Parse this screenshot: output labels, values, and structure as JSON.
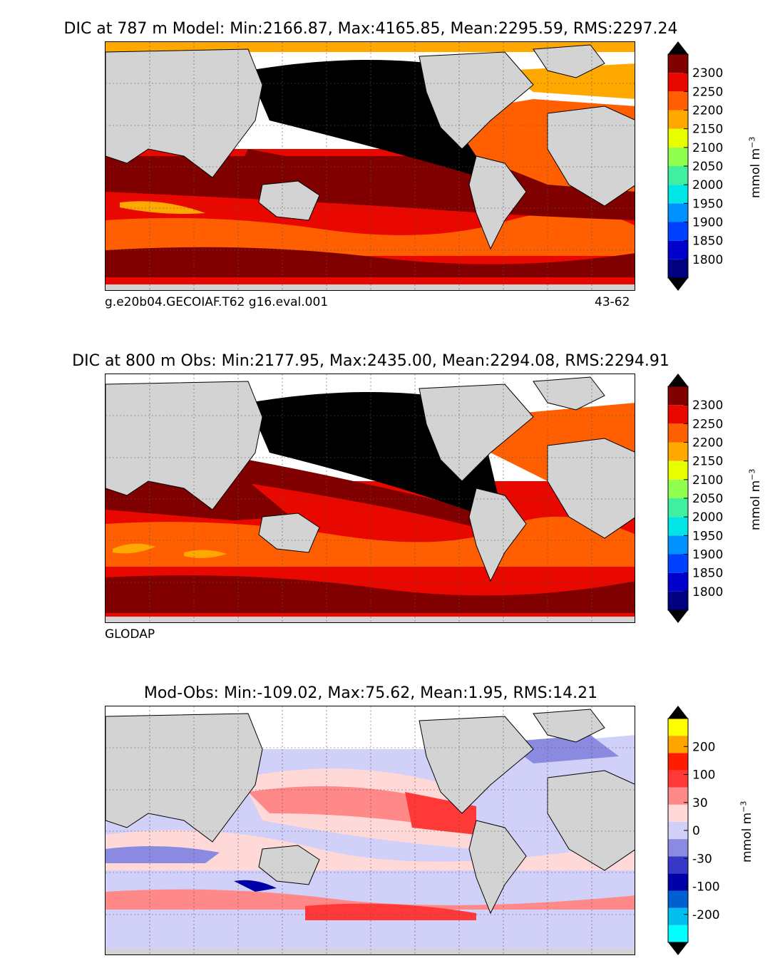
{
  "panels": [
    {
      "title": "DIC at 787 m Model: Min:2166.87, Max:4165.85, Mean:2295.59, RMS:2297.24",
      "caption_left": "g.e20b04.GECOIAF.T62 g16.eval.001",
      "caption_right": "43-62",
      "unit": "mmol m",
      "unit_exp": "−3",
      "colorbar": {
        "colors": [
          "#000080",
          "#0000cd",
          "#0040ff",
          "#0090ff",
          "#00e5e5",
          "#40f0a0",
          "#90ff50",
          "#e8ff00",
          "#ffa800",
          "#ff5f00",
          "#e80800",
          "#800000"
        ],
        "ticks": [
          "1800",
          "1850",
          "1900",
          "1950",
          "2000",
          "2050",
          "2100",
          "2150",
          "2200",
          "2250",
          "2300"
        ]
      }
    },
    {
      "title": "DIC at 800 m Obs: Min:2177.95, Max:2435.00, Mean:2294.08, RMS:2294.91",
      "caption_left": "GLODAP",
      "caption_right": "",
      "unit": "mmol m",
      "unit_exp": "−3",
      "colorbar": {
        "colors": [
          "#000080",
          "#0000cd",
          "#0040ff",
          "#0090ff",
          "#00e5e5",
          "#40f0a0",
          "#90ff50",
          "#e8ff00",
          "#ffa800",
          "#ff5f00",
          "#e80800",
          "#800000"
        ],
        "ticks": [
          "1800",
          "1850",
          "1900",
          "1950",
          "2000",
          "2050",
          "2100",
          "2150",
          "2200",
          "2250",
          "2300"
        ]
      }
    },
    {
      "title": "Mod-Obs: Min:-109.02, Max:75.62, Mean:1.95, RMS:14.21",
      "caption_left": "",
      "caption_right": "",
      "unit": "mmol m",
      "unit_exp": "−3",
      "colorbar": {
        "colors": [
          "#00ffff",
          "#00bfee",
          "#0060d0",
          "#0000a8",
          "#3838c8",
          "#8a8ae0",
          "#d0d0f8",
          "#ffd8d8",
          "#ff8888",
          "#ff3838",
          "#ff1c00",
          "#ffa500",
          "#ffff00"
        ],
        "ticks": [
          "-200",
          "-100",
          "-30",
          "0",
          "30",
          "100",
          "200"
        ]
      }
    }
  ],
  "map_colors": {
    "land": "#d3d3d3",
    "coast": "#000000",
    "grid": "#555555",
    "missing": "#ffffff"
  }
}
